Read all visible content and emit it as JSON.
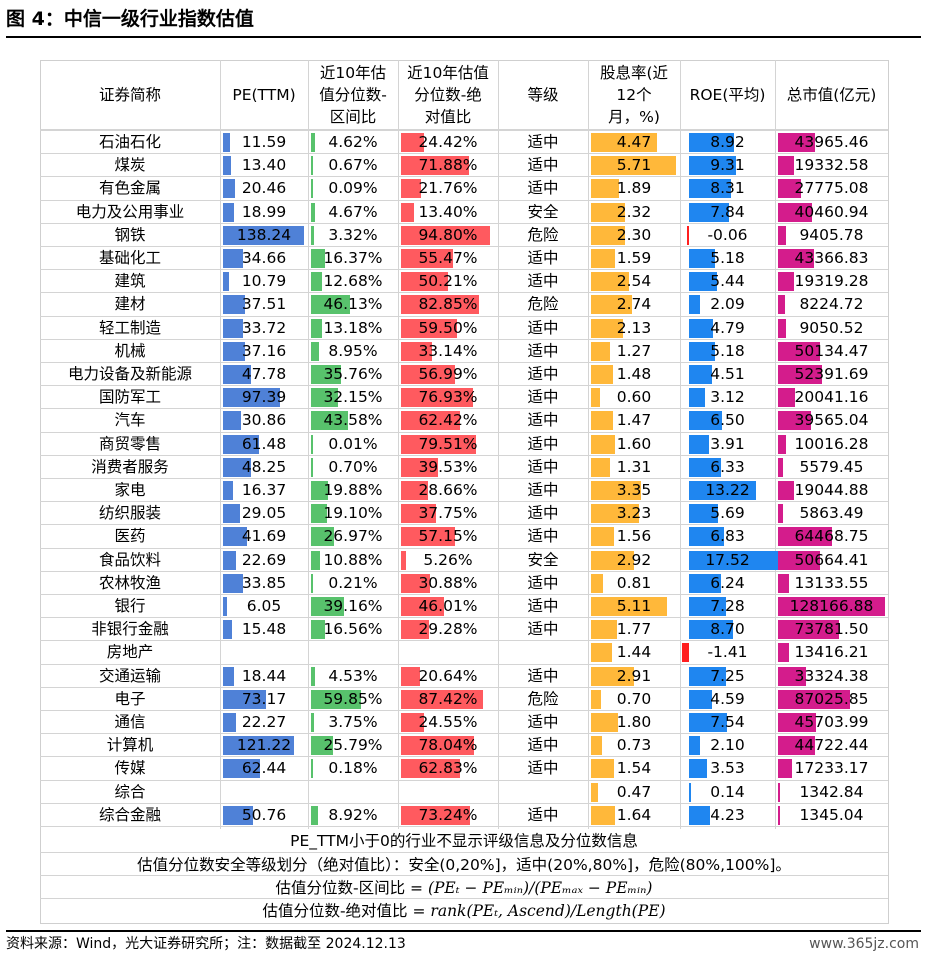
{
  "title": "图 4：中信一级行业指数估值",
  "headers": [
    [
      "证券简称"
    ],
    [
      "PE(TTM)"
    ],
    [
      "近10年估",
      "值分位数-",
      "区间比"
    ],
    [
      "近10年估值",
      "分位数-绝",
      "对值比"
    ],
    [
      "等级"
    ],
    [
      "股息率(近",
      "12个",
      "月，%)"
    ],
    [
      "ROE(平均)"
    ],
    [
      "总市值(亿元)"
    ]
  ],
  "colors": {
    "pe": "#4f81d7",
    "range": "#58c26c",
    "absolute": "#ff5a5f",
    "dividend": "#ffb83a",
    "roe": "#1f86f0",
    "roe_negative": "#ff1f1f",
    "market_cap": "#d41c8c"
  },
  "rows": [
    {
      "name": "石油石化",
      "pe": "11.59",
      "range": "4.62%",
      "abs": "24.42%",
      "grade": "适中",
      "div": "4.47",
      "roe": "8.92",
      "cap": "43965.46"
    },
    {
      "name": "煤炭",
      "pe": "13.40",
      "range": "0.67%",
      "abs": "71.88%",
      "grade": "适中",
      "div": "5.71",
      "roe": "9.31",
      "cap": "19332.58"
    },
    {
      "name": "有色金属",
      "pe": "20.46",
      "range": "0.09%",
      "abs": "21.76%",
      "grade": "适中",
      "div": "1.89",
      "roe": "8.31",
      "cap": "27775.08"
    },
    {
      "name": "电力及公用事业",
      "pe": "18.99",
      "range": "4.67%",
      "abs": "13.40%",
      "grade": "安全",
      "div": "2.32",
      "roe": "7.84",
      "cap": "40460.94"
    },
    {
      "name": "钢铁",
      "pe": "138.24",
      "range": "3.32%",
      "abs": "94.80%",
      "grade": "危险",
      "div": "2.30",
      "roe": "-0.06",
      "cap": "9405.78"
    },
    {
      "name": "基础化工",
      "pe": "34.66",
      "range": "16.37%",
      "abs": "55.47%",
      "grade": "适中",
      "div": "1.59",
      "roe": "5.18",
      "cap": "43366.83"
    },
    {
      "name": "建筑",
      "pe": "10.79",
      "range": "12.68%",
      "abs": "50.21%",
      "grade": "适中",
      "div": "2.54",
      "roe": "5.44",
      "cap": "19319.28"
    },
    {
      "name": "建材",
      "pe": "37.51",
      "range": "46.13%",
      "abs": "82.85%",
      "grade": "危险",
      "div": "2.74",
      "roe": "2.09",
      "cap": "8224.72"
    },
    {
      "name": "轻工制造",
      "pe": "33.72",
      "range": "13.18%",
      "abs": "59.50%",
      "grade": "适中",
      "div": "2.13",
      "roe": "4.79",
      "cap": "9050.52"
    },
    {
      "name": "机械",
      "pe": "37.16",
      "range": "8.95%",
      "abs": "33.14%",
      "grade": "适中",
      "div": "1.27",
      "roe": "5.18",
      "cap": "50134.47"
    },
    {
      "name": "电力设备及新能源",
      "pe": "47.78",
      "range": "35.76%",
      "abs": "56.99%",
      "grade": "适中",
      "div": "1.48",
      "roe": "4.51",
      "cap": "52391.69"
    },
    {
      "name": "国防军工",
      "pe": "97.39",
      "range": "32.15%",
      "abs": "76.93%",
      "grade": "适中",
      "div": "0.60",
      "roe": "3.12",
      "cap": "20041.16"
    },
    {
      "name": "汽车",
      "pe": "30.86",
      "range": "43.58%",
      "abs": "62.42%",
      "grade": "适中",
      "div": "1.47",
      "roe": "6.50",
      "cap": "39565.04"
    },
    {
      "name": "商贸零售",
      "pe": "61.48",
      "range": "0.01%",
      "abs": "79.51%",
      "grade": "适中",
      "div": "1.60",
      "roe": "3.91",
      "cap": "10016.28"
    },
    {
      "name": "消费者服务",
      "pe": "48.25",
      "range": "0.70%",
      "abs": "39.53%",
      "grade": "适中",
      "div": "1.31",
      "roe": "6.33",
      "cap": "5579.45"
    },
    {
      "name": "家电",
      "pe": "16.37",
      "range": "19.88%",
      "abs": "28.66%",
      "grade": "适中",
      "div": "3.35",
      "roe": "13.22",
      "cap": "19044.88"
    },
    {
      "name": "纺织服装",
      "pe": "29.05",
      "range": "19.10%",
      "abs": "37.75%",
      "grade": "适中",
      "div": "3.23",
      "roe": "5.69",
      "cap": "5863.49"
    },
    {
      "name": "医药",
      "pe": "41.69",
      "range": "26.97%",
      "abs": "57.15%",
      "grade": "适中",
      "div": "1.56",
      "roe": "6.83",
      "cap": "64468.75"
    },
    {
      "name": "食品饮料",
      "pe": "22.69",
      "range": "10.88%",
      "abs": "5.26%",
      "grade": "安全",
      "div": "2.92",
      "roe": "17.52",
      "cap": "50664.41"
    },
    {
      "name": "农林牧渔",
      "pe": "33.85",
      "range": "0.21%",
      "abs": "30.88%",
      "grade": "适中",
      "div": "0.81",
      "roe": "6.24",
      "cap": "13133.55"
    },
    {
      "name": "银行",
      "pe": "6.05",
      "range": "39.16%",
      "abs": "46.01%",
      "grade": "适中",
      "div": "5.11",
      "roe": "7.28",
      "cap": "128166.88"
    },
    {
      "name": "非银行金融",
      "pe": "15.48",
      "range": "16.56%",
      "abs": "29.28%",
      "grade": "适中",
      "div": "1.77",
      "roe": "8.70",
      "cap": "73781.50"
    },
    {
      "name": "房地产",
      "pe": "",
      "range": "",
      "abs": "",
      "grade": "",
      "div": "1.44",
      "roe": "-1.41",
      "cap": "13416.21"
    },
    {
      "name": "交通运输",
      "pe": "18.44",
      "range": "4.53%",
      "abs": "20.64%",
      "grade": "适中",
      "div": "2.91",
      "roe": "7.25",
      "cap": "33324.38"
    },
    {
      "name": "电子",
      "pe": "73.17",
      "range": "59.85%",
      "abs": "87.42%",
      "grade": "危险",
      "div": "0.70",
      "roe": "4.59",
      "cap": "87025.85"
    },
    {
      "name": "通信",
      "pe": "22.27",
      "range": "3.75%",
      "abs": "24.55%",
      "grade": "适中",
      "div": "1.80",
      "roe": "7.54",
      "cap": "45703.99"
    },
    {
      "name": "计算机",
      "pe": "121.22",
      "range": "25.79%",
      "abs": "78.04%",
      "grade": "适中",
      "div": "0.73",
      "roe": "2.10",
      "cap": "44722.44"
    },
    {
      "name": "传媒",
      "pe": "62.44",
      "range": "0.18%",
      "abs": "62.83%",
      "grade": "适中",
      "div": "1.54",
      "roe": "3.53",
      "cap": "17233.17"
    },
    {
      "name": "综合",
      "pe": "",
      "range": "",
      "abs": "",
      "grade": "",
      "div": "0.47",
      "roe": "0.14",
      "cap": "1342.84"
    },
    {
      "name": "综合金融",
      "pe": "50.76",
      "range": "8.92%",
      "abs": "73.24%",
      "grade": "适中",
      "div": "1.64",
      "roe": "4.23",
      "cap": "1345.04"
    }
  ],
  "footnotes": {
    "line1": "PE_TTM小于0的行业不显示评级信息及分位数信息",
    "line2": "估值分位数安全等级划分（绝对值比）：安全(0,20%]，适中(20%,80%]，危险(80%,100%]。",
    "line3_label": "估值分位数-区间比 =",
    "line3_formula": "(PEₜ − PEₘᵢₙ)/(PEₘₐₓ − PEₘᵢₙ)",
    "line4_label": "估值分位数-绝对值比 =",
    "line4_formula": "rank(PEₜ, Ascend)/Length(PE)"
  },
  "source": "资料来源：Wind，光大证券研究所；注：数据截至 2024.12.13",
  "watermark": "www.365jz.com"
}
